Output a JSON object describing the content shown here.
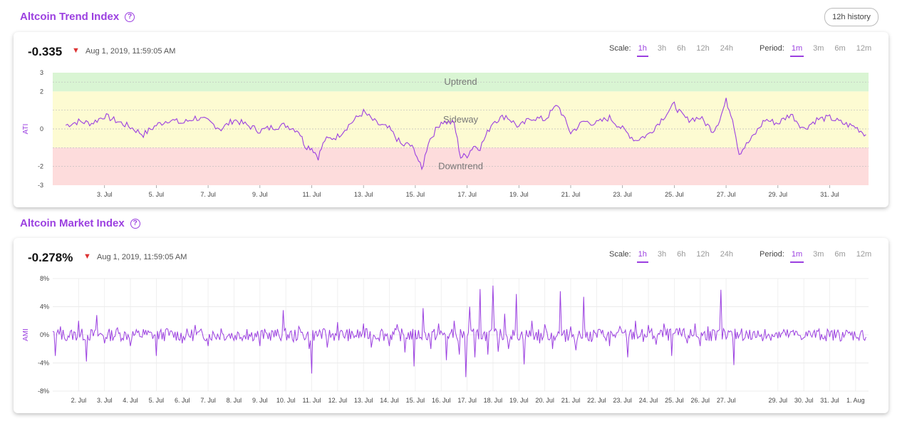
{
  "ati": {
    "title": "Altcoin Trend Index",
    "help": "?",
    "history_button": "12h history",
    "value": "-0.335",
    "timestamp": "Aug 1, 2019, 11:59:05 AM",
    "scale_label": "Scale:",
    "scale_options": [
      "1h",
      "3h",
      "6h",
      "12h",
      "24h"
    ],
    "scale_active": "1h",
    "period_label": "Period:",
    "period_options": [
      "1m",
      "3m",
      "6m",
      "12m"
    ],
    "period_active": "1m"
  },
  "ami": {
    "title": "Altcoin Market Index",
    "help": "?",
    "value": "-0.278%",
    "timestamp": "Aug 1, 2019, 11:59:05 AM",
    "scale_label": "Scale:",
    "scale_options": [
      "1h",
      "3h",
      "6h",
      "12h",
      "24h"
    ],
    "scale_active": "1h",
    "period_label": "Period:",
    "period_options": [
      "1m",
      "3m",
      "6m",
      "12m"
    ],
    "period_active": "1m"
  },
  "colors": {
    "accent": "#9b3fe0",
    "down": "#dd3333",
    "uptrend_band": "#d9f5d3",
    "sideway_band": "#fdfbd2",
    "downtrend_band": "#fddcdc"
  },
  "chart_data": [
    {
      "type": "line",
      "ylabel": "ATI",
      "ylim": [
        -3,
        3
      ],
      "yticks": [
        "3",
        "2",
        "0",
        "-2",
        "-3"
      ],
      "xticks": [
        "3. Jul",
        "5. Jul",
        "7. Jul",
        "9. Jul",
        "11. Jul",
        "13. Jul",
        "15. Jul",
        "17. Jul",
        "19. Jul",
        "21. Jul",
        "23. Jul",
        "25. Jul",
        "27. Jul",
        "29. Jul",
        "31. Jul"
      ],
      "bands": [
        {
          "name": "Uptrend",
          "from": 2,
          "to": 3
        },
        {
          "name": "Sideway",
          "from": -1,
          "to": 2
        },
        {
          "name": "Downtrend",
          "from": -3,
          "to": -1
        }
      ],
      "series": [
        {
          "x_days": [
            1.5,
            2.0,
            2.5,
            3.0,
            3.5,
            4.0,
            4.5,
            5.0,
            5.5,
            6.0,
            6.5,
            7.0,
            7.5,
            8.0,
            8.5,
            9.0,
            9.5,
            10.0,
            10.5,
            10.75,
            11.0,
            11.25,
            11.5,
            12.0,
            12.5,
            13.0,
            13.5,
            14.0,
            14.5,
            14.75,
            15.0,
            15.25,
            15.5,
            16.0,
            16.5,
            16.75,
            17.0,
            17.25,
            17.5,
            18.0,
            18.5,
            19.0,
            19.5,
            20.0,
            20.5,
            21.0,
            21.5,
            22.0,
            22.5,
            23.0,
            23.5,
            24.0,
            24.5,
            25.0,
            25.25,
            25.5,
            26.0,
            26.5,
            26.75,
            27.0,
            27.25,
            27.5,
            28.0,
            28.5,
            29.0,
            29.5,
            30.0,
            30.5,
            31.0,
            31.5,
            32.0,
            32.4
          ],
          "values": [
            0.2,
            0.4,
            0.3,
            0.7,
            0.4,
            0.1,
            -0.3,
            0.2,
            0.5,
            0.3,
            0.6,
            0.4,
            0.0,
            0.5,
            0.2,
            -0.1,
            0.1,
            0.2,
            -0.1,
            -0.9,
            -1.0,
            -1.5,
            -0.6,
            -0.4,
            0.3,
            0.9,
            0.3,
            0.0,
            -0.9,
            -0.8,
            -1.2,
            -2.2,
            -0.7,
            0.4,
            0.3,
            -1.5,
            -1.4,
            -0.9,
            -1.0,
            0.4,
            0.7,
            0.1,
            0.6,
            0.5,
            1.3,
            -0.2,
            0.4,
            0.3,
            0.6,
            0.0,
            -0.6,
            -0.3,
            0.5,
            1.3,
            0.8,
            0.5,
            0.6,
            -0.1,
            0.5,
            1.5,
            0.6,
            -1.3,
            -0.5,
            0.5,
            0.3,
            0.8,
            0.0,
            0.5,
            0.6,
            0.3,
            0.1,
            -0.3
          ]
        }
      ]
    },
    {
      "type": "line",
      "ylabel": "AMI",
      "ylim": [
        -8,
        8
      ],
      "yticks": [
        "8%",
        "4%",
        "0%",
        "-4%",
        "-8%"
      ],
      "xticks": [
        "2. Jul",
        "3. Jul",
        "4. Jul",
        "5. Jul",
        "6. Jul",
        "7. Jul",
        "8. Jul",
        "9. Jul",
        "10. Jul",
        "11. Jul",
        "12. Jul",
        "13. Jul",
        "14. Jul",
        "15. Jul",
        "16. Jul",
        "17. Jul",
        "18. Jul",
        "19. Jul",
        "20. Jul",
        "21. Jul",
        "22. Jul",
        "23. Jul",
        "24. Jul",
        "25. Jul",
        "26. Jul",
        "27. Jul",
        "29. Jul",
        "30. Jul",
        "31. Jul",
        "1. Aug"
      ],
      "series": [
        {
          "x_days": [
            1.0,
            1.1,
            1.3,
            1.5,
            2.0,
            2.3,
            2.7,
            3.0,
            3.5,
            4.0,
            4.5,
            5.0,
            5.4,
            6.0,
            6.5,
            7.0,
            7.5,
            8.0,
            8.5,
            9.0,
            9.5,
            9.9,
            10.3,
            10.5,
            10.9,
            11.0,
            11.3,
            11.6,
            12.0,
            12.5,
            13.0,
            13.3,
            13.7,
            14.0,
            14.3,
            14.6,
            14.95,
            15.3,
            15.6,
            15.9,
            16.2,
            16.5,
            16.7,
            16.95,
            17.1,
            17.3,
            17.5,
            17.8,
            18.0,
            18.2,
            18.45,
            18.6,
            18.9,
            19.2,
            19.5,
            19.8,
            20.0,
            20.3,
            20.6,
            20.8,
            21.0,
            21.2,
            21.5,
            21.8,
            22.1,
            22.5,
            22.9,
            23.2,
            23.5,
            23.8,
            24.0,
            24.3,
            24.6,
            24.9,
            25.2,
            25.5,
            25.8,
            26.0,
            26.3,
            26.6,
            26.8,
            27.0,
            27.3,
            27.6,
            28.0,
            28.5,
            29.0,
            29.5,
            30.0,
            30.5,
            31.0,
            31.5,
            32.0,
            32.4
          ],
          "values": [
            0.5,
            -3.0,
            1.2,
            -0.8,
            2.0,
            -3.8,
            2.8,
            -1.2,
            1.0,
            -1.6,
            0.8,
            -3.0,
            0.9,
            -1.2,
            1.4,
            -1.6,
            0.9,
            -0.8,
            0.8,
            -1.6,
            0.5,
            3.5,
            -1.0,
            1.2,
            -2.0,
            -5.5,
            0.7,
            -1.8,
            1.8,
            -0.6,
            1.6,
            -1.8,
            0.8,
            -1.6,
            1.5,
            -2.5,
            -4.5,
            3.8,
            -2.0,
            1.6,
            -3.6,
            2.0,
            -2.8,
            -6.0,
            4.0,
            -3.2,
            6.5,
            -2.8,
            7.0,
            -2.4,
            3.0,
            -2.0,
            5.8,
            -4.2,
            2.0,
            -1.2,
            1.5,
            -2.0,
            6.2,
            -1.0,
            1.2,
            -2.2,
            5.4,
            -1.0,
            0.8,
            -1.6,
            1.2,
            -3.2,
            2.0,
            -1.0,
            1.4,
            -1.4,
            1.6,
            -3.0,
            1.0,
            -1.2,
            1.6,
            -1.6,
            1.2,
            -0.8,
            6.4,
            -0.6,
            -4.3,
            0.9,
            -0.6,
            0.8,
            -0.5,
            0.5,
            -0.4,
            0.6,
            -0.3,
            0.4,
            -0.2,
            -0.3
          ]
        }
      ]
    }
  ]
}
